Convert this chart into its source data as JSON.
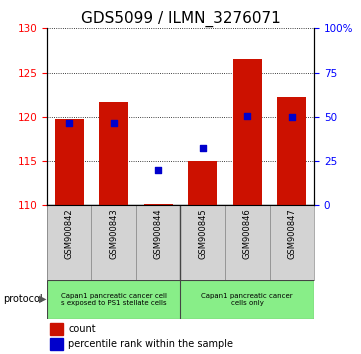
{
  "title": "GDS5099 / ILMN_3276071",
  "categories": [
    "GSM900842",
    "GSM900843",
    "GSM900844",
    "GSM900845",
    "GSM900846",
    "GSM900847"
  ],
  "bar_tops": [
    119.8,
    121.7,
    110.1,
    115.0,
    126.5,
    122.2
  ],
  "bar_bottom": 110,
  "percentile_ranks": [
    46.5,
    46.5,
    20.0,
    32.5,
    50.5,
    50.0
  ],
  "ylim_left": [
    110,
    130
  ],
  "ylim_right": [
    0,
    100
  ],
  "yticks_left": [
    110,
    115,
    120,
    125,
    130
  ],
  "yticks_right": [
    0,
    25,
    50,
    75,
    100
  ],
  "ytick_labels_right": [
    "0",
    "25",
    "50",
    "75",
    "100%"
  ],
  "bar_color": "#cc1100",
  "dot_color": "#0000cc",
  "bar_width": 0.65,
  "group1_label": "Capan1 pancreatic cancer cell\ns exposed to PS1 stellate cells",
  "group2_label": "Capan1 pancreatic cancer\ncells only",
  "sample_bg_color": "#d3d3d3",
  "group_bg_color": "#88ee88",
  "protocol_label": "protocol",
  "legend_count_label": "count",
  "legend_percentile_label": "percentile rank within the sample",
  "title_fontsize": 11,
  "tick_fontsize": 7.5
}
